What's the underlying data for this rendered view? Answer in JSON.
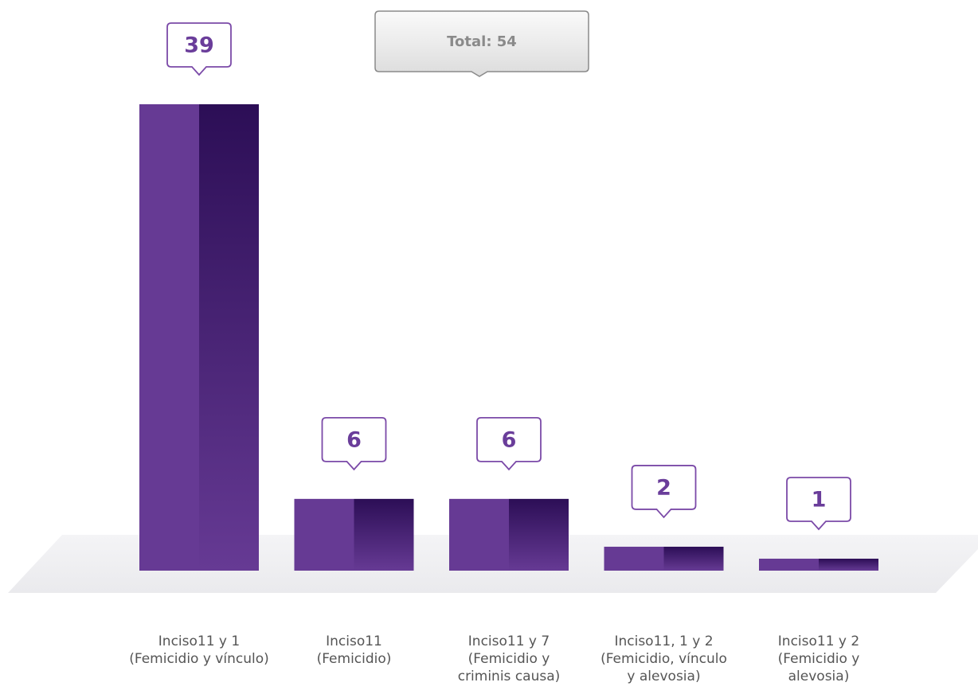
{
  "chart_data": {
    "type": "bar",
    "annotation": "Total: 54",
    "categories": [
      "Inciso11 y 1\n(Femicidio y vínculo)",
      "Inciso11\n(Femicidio)",
      "Inciso11 y 7\n(Femicidio y\ncriminis causa)",
      "Inciso11, 1 y 2\n(Femicidio, vínculo\ny alevosia)",
      "Inciso11 y 2\n(Femicidio y\nalevosia)"
    ],
    "values": [
      39,
      6,
      6,
      2,
      1
    ],
    "color": "#663a94"
  }
}
